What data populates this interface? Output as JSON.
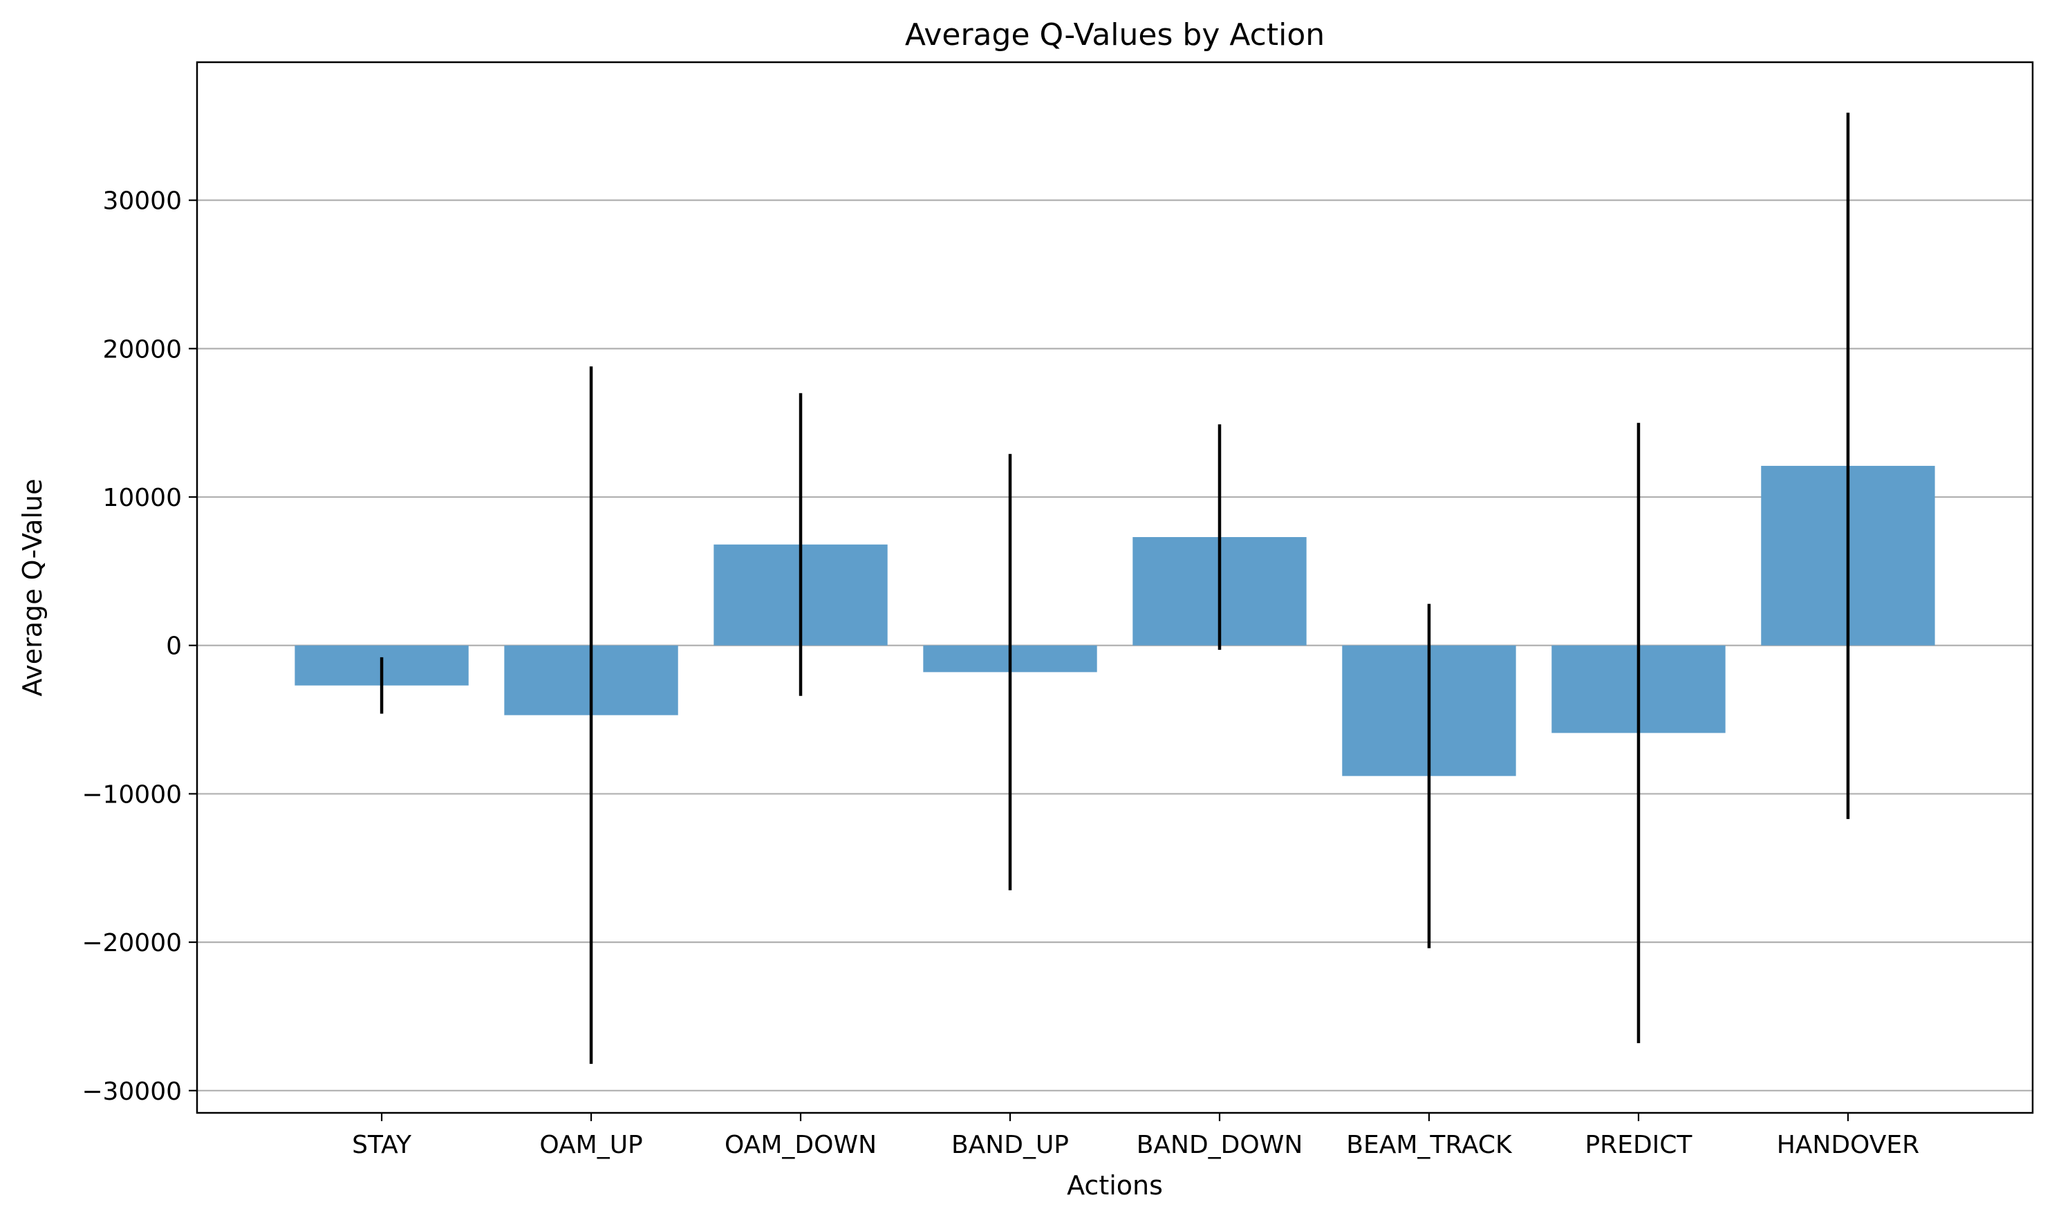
{
  "chart_data": {
    "type": "bar",
    "title": "Average Q-Values by Action",
    "xlabel": "Actions",
    "ylabel": "Average Q-Value",
    "categories": [
      "STAY",
      "OAM_UP",
      "OAM_DOWN",
      "BAND_UP",
      "BAND_DOWN",
      "BEAM_TRACK",
      "PREDICT",
      "HANDOVER"
    ],
    "values": [
      -2700,
      -4700,
      6800,
      -1800,
      7300,
      -8800,
      -5900,
      12100
    ],
    "error": [
      1900,
      23500,
      10200,
      14700,
      7600,
      11600,
      20900,
      23800
    ],
    "ylim": [
      -31500,
      39300
    ],
    "yticks": [
      -30000,
      -20000,
      -10000,
      0,
      10000,
      20000,
      30000
    ],
    "ytick_labels": [
      "−30000",
      "−20000",
      "−10000",
      "0",
      "10000",
      "20000",
      "30000"
    ],
    "grid": "y-major",
    "bar_color": "#5f9ecb",
    "error_color": "#000000",
    "grid_color": "#b0b0b0"
  }
}
